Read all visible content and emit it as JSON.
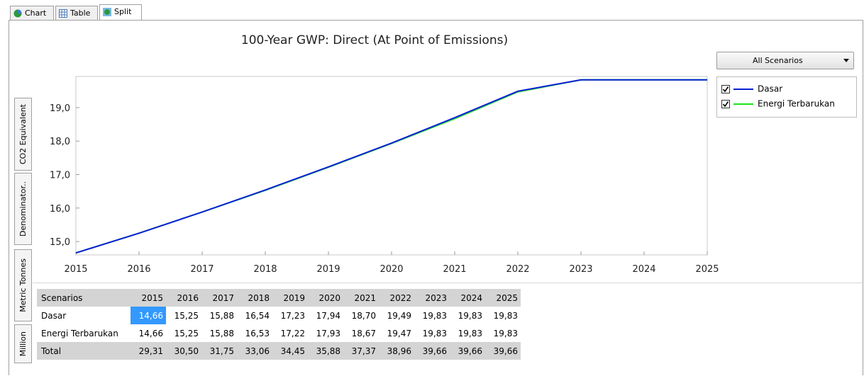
{
  "tabs": [
    "Chart",
    "Table",
    "Split"
  ],
  "side_tabs": [
    "CO2 Equivalent",
    "Denominator..",
    "Metric Tonnes",
    "Million"
  ],
  "dropdown": "All Scenarios",
  "chart_data": {
    "type": "line",
    "title": "100-Year GWP: Direct (At Point of Emissions)",
    "x": [
      2015,
      2016,
      2017,
      2018,
      2019,
      2020,
      2021,
      2022,
      2023,
      2024,
      2025
    ],
    "xlim": [
      2015,
      2025
    ],
    "xticks": [
      2015,
      2016,
      2017,
      2018,
      2019,
      2020,
      2021,
      2022,
      2023,
      2024,
      2025
    ],
    "ylim": [
      14.6,
      19.93
    ],
    "yticks": [
      {
        "value": 15,
        "label": "15,0"
      },
      {
        "value": 16,
        "label": "16,0"
      },
      {
        "value": 17,
        "label": "17,0"
      },
      {
        "value": 18,
        "label": "18,0"
      },
      {
        "value": 19,
        "label": "19,0"
      }
    ],
    "grid": false,
    "series": [
      {
        "name": "Dasar",
        "color": "#0a1fd6",
        "values": [
          14.66,
          15.25,
          15.88,
          16.54,
          17.23,
          17.94,
          18.7,
          19.49,
          19.83,
          19.83,
          19.83
        ]
      },
      {
        "name": "Energi Terbarukan",
        "color": "#19e619",
        "values": [
          14.66,
          15.25,
          15.88,
          16.53,
          17.22,
          17.93,
          18.67,
          19.47,
          19.83,
          19.83,
          19.83
        ]
      }
    ]
  },
  "table": {
    "header": [
      "Scenarios",
      "2015",
      "2016",
      "2017",
      "2018",
      "2019",
      "2020",
      "2021",
      "2022",
      "2023",
      "2024",
      "2025"
    ],
    "rows": [
      [
        "Dasar",
        "14,66",
        "15,25",
        "15,88",
        "16,54",
        "17,23",
        "17,94",
        "18,70",
        "19,49",
        "19,83",
        "19,83",
        "19,83"
      ],
      [
        "Energi Terbarukan",
        "14,66",
        "15,25",
        "15,88",
        "16,53",
        "17,22",
        "17,93",
        "18,67",
        "19,47",
        "19,83",
        "19,83",
        "19,83"
      ],
      [
        "Total",
        "29,31",
        "30,50",
        "31,75",
        "33,06",
        "34,45",
        "35,88",
        "37,37",
        "38,96",
        "39,66",
        "39,66",
        "39,66"
      ]
    ]
  }
}
